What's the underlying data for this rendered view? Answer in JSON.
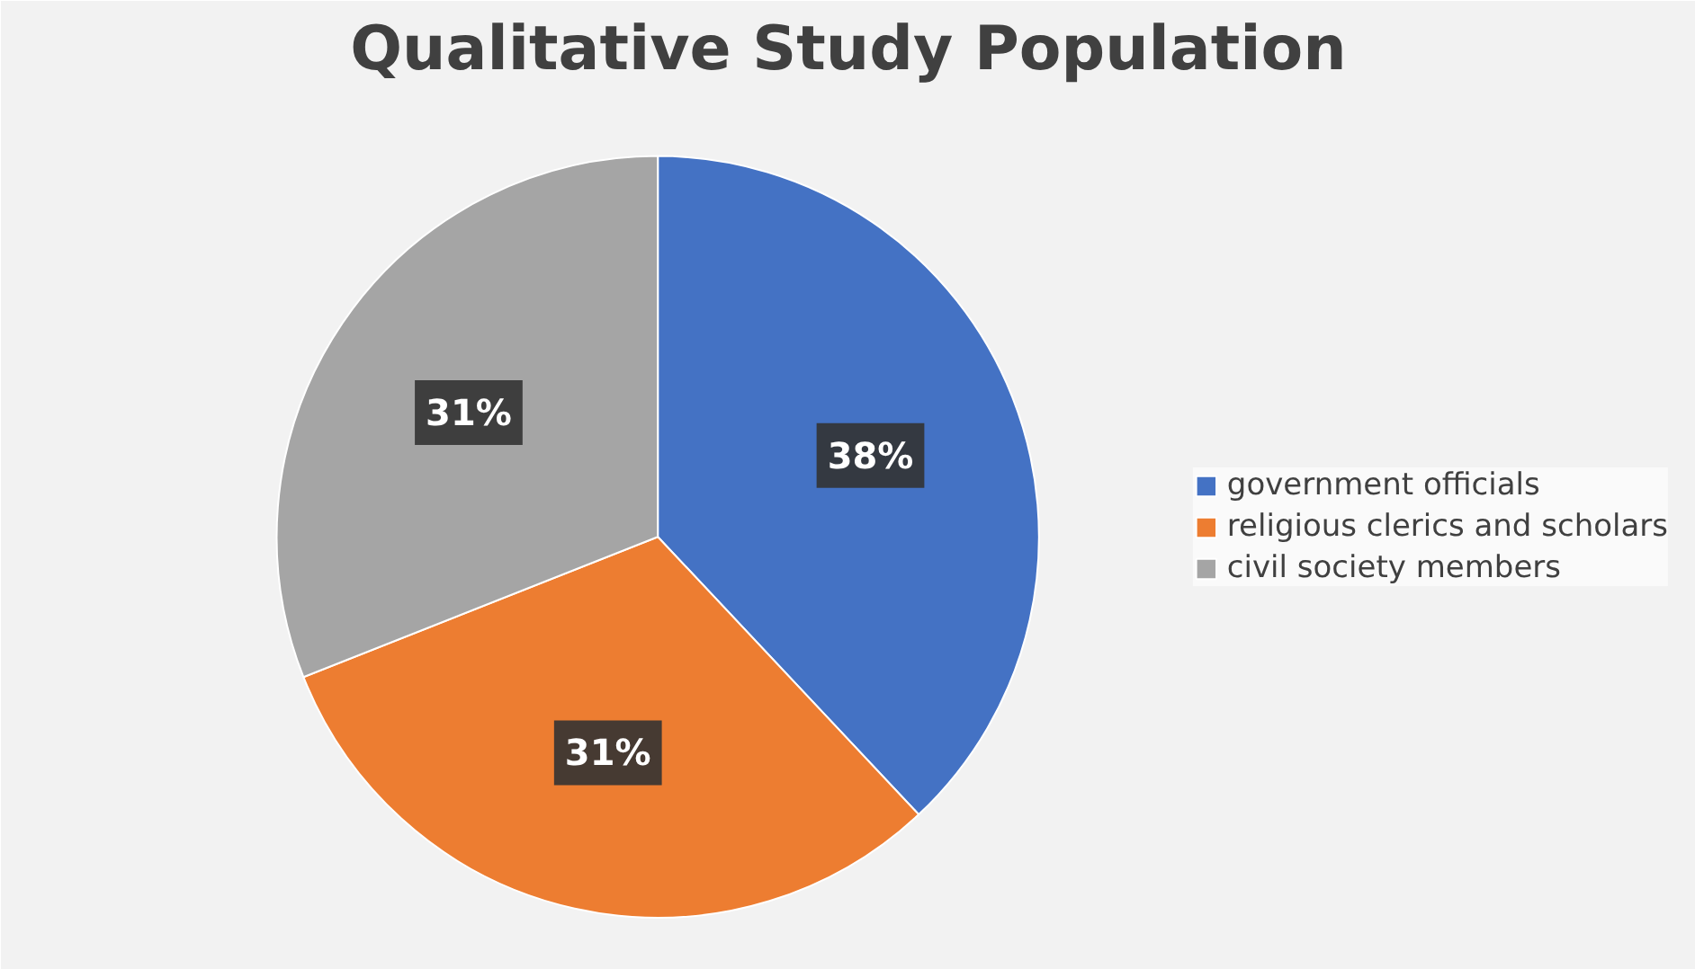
{
  "chart_data": {
    "type": "pie",
    "title": "Qualitative Study Population",
    "categories": [
      "government officials",
      "religious clerics and scholars",
      "civil society members"
    ],
    "values": [
      38,
      31,
      31
    ],
    "colors": [
      "#4472c4",
      "#ed7d31",
      "#a5a5a5"
    ],
    "value_labels": [
      "38%",
      "31%",
      "31%"
    ],
    "legend": "right"
  }
}
